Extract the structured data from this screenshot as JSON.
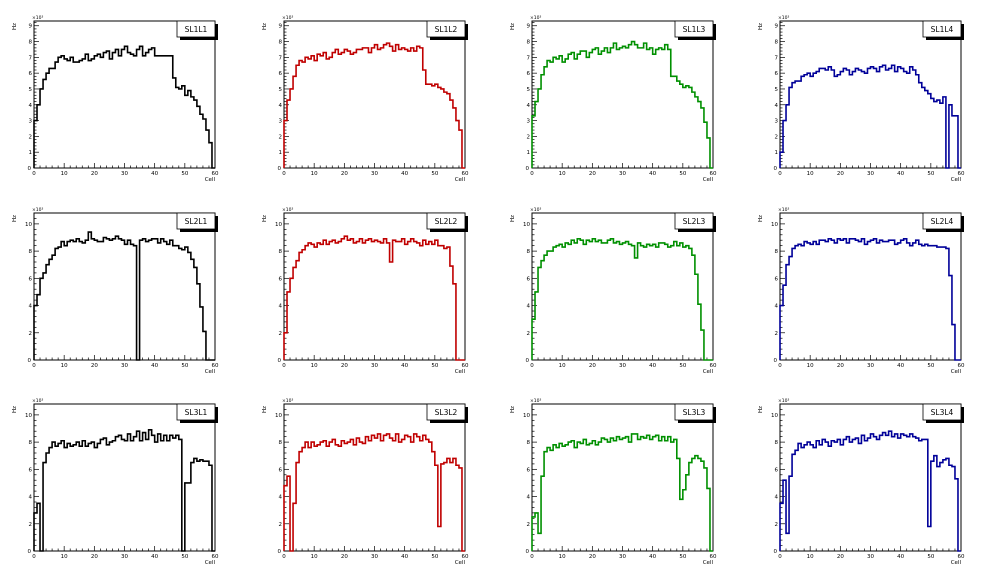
{
  "chart_data": [
    {
      "type": "histogram",
      "title": "SL1L1",
      "xlabel": "Cell",
      "ylabel": "Hz",
      "exponent": "×10³",
      "xlim": [
        0,
        60
      ],
      "ylim": [
        0,
        9.3
      ],
      "yticks": [
        1,
        2,
        3,
        4,
        5,
        6,
        7,
        8,
        9
      ],
      "color": "#000000",
      "values": [
        3,
        4,
        5,
        5.6,
        6,
        6.3,
        6.3,
        6.7,
        7,
        7.1,
        6.9,
        6.8,
        7,
        6.7,
        6.7,
        6.8,
        6.9,
        7.2,
        6.8,
        6.9,
        7.1,
        7.2,
        7.0,
        7.3,
        7.4,
        6.9,
        7.3,
        7.5,
        7.1,
        7.5,
        7.7,
        7.3,
        7.2,
        7.1,
        7.5,
        7.7,
        7.1,
        7.3,
        7.5,
        7.6,
        7.1,
        7.1,
        7.1,
        7.1,
        7.1,
        7.1,
        5.7,
        5.1,
        5.0,
        5.2,
        4.6,
        4.9,
        4.5,
        4.3,
        3.9,
        3.4,
        3.1,
        2.4,
        1.6,
        0
      ]
    },
    {
      "type": "histogram",
      "title": "SL1L2",
      "xlabel": "Cell",
      "ylabel": "Hz",
      "exponent": "×10³",
      "xlim": [
        0,
        60
      ],
      "ylim": [
        0,
        9.3
      ],
      "yticks": [
        1,
        2,
        3,
        4,
        5,
        6,
        7,
        8,
        9
      ],
      "color": "#c00000",
      "values": [
        3,
        4.3,
        5,
        5.8,
        6.5,
        6.8,
        6.7,
        7,
        6.9,
        7.1,
        6.8,
        7.2,
        7.1,
        7.3,
        6.9,
        7.0,
        7.3,
        7.5,
        7.2,
        7.3,
        7.5,
        7.4,
        7.2,
        7.3,
        7.5,
        7.5,
        7.6,
        7.6,
        7.3,
        7.6,
        7.8,
        7.5,
        7.6,
        7.8,
        7.9,
        7.7,
        7.4,
        7.8,
        7.5,
        7.6,
        7.5,
        7.4,
        7.6,
        7.4,
        7.7,
        7.6,
        6.2,
        5.3,
        5.3,
        5.2,
        5.3,
        5.1,
        5.0,
        4.8,
        4.7,
        4.3,
        3.8,
        3.0,
        2.4,
        0
      ]
    },
    {
      "type": "histogram",
      "title": "SL1L3",
      "xlabel": "Cell",
      "ylabel": "Hz",
      "exponent": "×10³",
      "xlim": [
        0,
        60
      ],
      "ylim": [
        0,
        9.3
      ],
      "yticks": [
        1,
        2,
        3,
        4,
        5,
        6,
        7,
        8,
        9
      ],
      "color": "#009000",
      "values": [
        3.3,
        4.2,
        5,
        5.9,
        6.4,
        6.8,
        6.7,
        7,
        6.9,
        7.1,
        6.7,
        6.9,
        7.2,
        7.3,
        6.9,
        7.2,
        7.4,
        7.4,
        7.0,
        7.3,
        7.5,
        7.6,
        7.2,
        7.4,
        7.6,
        7.3,
        7.6,
        7.9,
        7.5,
        7.6,
        7.7,
        7.6,
        7.8,
        8.0,
        7.8,
        7.6,
        7.6,
        7.9,
        7.5,
        7.6,
        7.2,
        7.5,
        7.6,
        7.5,
        7.8,
        7.5,
        5.8,
        5.8,
        5.5,
        5.3,
        5.1,
        5.2,
        5.1,
        4.8,
        4.5,
        4.2,
        3.8,
        2.9,
        1.9,
        0
      ]
    },
    {
      "type": "histogram",
      "title": "SL1L4",
      "xlabel": "Cell",
      "ylabel": "Hz",
      "exponent": "×10³",
      "xlim": [
        0,
        60
      ],
      "ylim": [
        0,
        9.3
      ],
      "yticks": [
        1,
        2,
        3,
        4,
        5,
        6,
        7,
        8,
        9
      ],
      "color": "#000099",
      "values": [
        1,
        3,
        4,
        5.1,
        5.4,
        5.5,
        5.5,
        5.8,
        5.9,
        6.0,
        5.8,
        6.0,
        6.1,
        6.3,
        6.3,
        6.2,
        6.4,
        6.2,
        5.8,
        5.9,
        6.1,
        6.3,
        6.2,
        5.9,
        6.1,
        6.3,
        6.2,
        6.1,
        6.0,
        6.3,
        6.4,
        6.3,
        6.1,
        6.4,
        6.5,
        6.2,
        6.3,
        6.5,
        6.1,
        6.4,
        6.3,
        6.1,
        6.0,
        6.4,
        6.2,
        5.9,
        5.4,
        5.1,
        4.9,
        4.7,
        4.4,
        4.2,
        4.3,
        4.1,
        4.5,
        0,
        4.0,
        3.3,
        3.3,
        0
      ]
    },
    {
      "type": "histogram",
      "title": "SL2L1",
      "xlabel": "Cell",
      "ylabel": "Hz",
      "exponent": "×10³",
      "xlim": [
        0,
        60
      ],
      "ylim": [
        0,
        10.8
      ],
      "yticks": [
        2,
        4,
        6,
        8,
        10
      ],
      "color": "#000000",
      "values": [
        4,
        4.8,
        6,
        6.4,
        7,
        7.4,
        7.7,
        8.2,
        8.3,
        8.7,
        8.4,
        8.7,
        8.8,
        8.7,
        8.9,
        8.7,
        8.6,
        8.8,
        9.4,
        8.9,
        8.8,
        8.7,
        8.7,
        9.0,
        8.9,
        8.8,
        8.9,
        9.1,
        8.9,
        8.8,
        8.5,
        8.8,
        8.5,
        8.4,
        0,
        8.8,
        8.9,
        8.7,
        8.8,
        8.9,
        8.9,
        8.6,
        8.9,
        8.7,
        8.5,
        8.8,
        8.4,
        8.4,
        8.2,
        8.1,
        8.3,
        7.9,
        7.4,
        6.8,
        5.6,
        3.9,
        2.1,
        0,
        0,
        0
      ]
    },
    {
      "type": "histogram",
      "title": "SL2L2",
      "xlabel": "Cell",
      "ylabel": "Hz",
      "exponent": "×10³",
      "xlim": [
        0,
        60
      ],
      "ylim": [
        0,
        10.8
      ],
      "yticks": [
        2,
        4,
        6,
        8,
        10
      ],
      "color": "#c00000",
      "values": [
        2,
        5,
        6,
        6.8,
        7.3,
        7.9,
        8.1,
        8.4,
        8.6,
        8.5,
        8.3,
        8.6,
        8.5,
        8.8,
        8.5,
        8.7,
        8.8,
        8.6,
        8.7,
        8.9,
        9.1,
        8.8,
        8.9,
        8.6,
        8.7,
        8.9,
        8.6,
        8.8,
        8.9,
        8.7,
        8.8,
        8.7,
        8.6,
        8.9,
        8.6,
        7.2,
        8.8,
        8.7,
        8.7,
        8.9,
        8.5,
        8.7,
        8.9,
        8.7,
        8.6,
        8.4,
        8.8,
        8.5,
        8.7,
        8.5,
        8.8,
        8.4,
        8.4,
        8.2,
        8.3,
        6.9,
        5.6,
        0,
        0,
        0
      ]
    },
    {
      "type": "histogram",
      "title": "SL2L3",
      "xlabel": "Cell",
      "ylabel": "Hz",
      "exponent": "×10³",
      "xlim": [
        0,
        60
      ],
      "ylim": [
        0,
        10.8
      ],
      "yticks": [
        2,
        4,
        6,
        8,
        10
      ],
      "color": "#009000",
      "values": [
        3,
        5,
        6.8,
        7.3,
        7.7,
        8.0,
        8.0,
        8.3,
        8.4,
        8.5,
        8.3,
        8.6,
        8.5,
        8.8,
        8.6,
        8.9,
        8.8,
        8.5,
        8.8,
        8.7,
        8.9,
        8.7,
        8.8,
        8.6,
        8.6,
        8.8,
        8.9,
        8.6,
        8.7,
        8.5,
        8.6,
        8.7,
        8.5,
        8.4,
        7.5,
        8.6,
        8.4,
        8.3,
        8.5,
        8.4,
        8.5,
        8.3,
        8.6,
        8.6,
        8.5,
        8.3,
        8.4,
        8.7,
        8.4,
        8.6,
        8.3,
        8.4,
        8.2,
        7.7,
        6.3,
        4.1,
        2.2,
        0,
        0,
        0
      ]
    },
    {
      "type": "histogram",
      "title": "SL2L4",
      "xlabel": "Cell",
      "ylabel": "Hz",
      "exponent": "×10³",
      "xlim": [
        0,
        60
      ],
      "ylim": [
        0,
        10.8
      ],
      "yticks": [
        2,
        4,
        6,
        8,
        10
      ],
      "color": "#000099",
      "values": [
        4,
        5.5,
        7,
        7.6,
        8.2,
        8.4,
        8.5,
        8.4,
        8.7,
        8.6,
        8.5,
        8.7,
        8.5,
        8.8,
        8.8,
        8.7,
        8.9,
        8.8,
        8.6,
        8.9,
        8.8,
        8.9,
        8.6,
        8.9,
        8.9,
        8.8,
        8.7,
        8.9,
        8.5,
        8.7,
        8.8,
        8.9,
        8.6,
        8.8,
        8.7,
        8.7,
        8.8,
        8.8,
        8.5,
        8.6,
        8.8,
        8.9,
        8.6,
        8.4,
        8.6,
        8.8,
        8.5,
        8.4,
        8.5,
        8.4,
        8.4,
        8.4,
        8.3,
        8.3,
        8.3,
        8.2,
        6.2,
        2.6,
        0,
        0
      ]
    },
    {
      "type": "histogram",
      "title": "SL3L1",
      "xlabel": "Cell",
      "ylabel": "Hz",
      "exponent": "×10³",
      "xlim": [
        0,
        60
      ],
      "ylim": [
        0,
        10.8
      ],
      "yticks": [
        2,
        4,
        6,
        8,
        10
      ],
      "color": "#000000",
      "values": [
        2.8,
        3.5,
        0,
        6.5,
        7.2,
        7.6,
        8.0,
        7.7,
        7.9,
        8.1,
        7.6,
        7.9,
        7.7,
        7.8,
        8.0,
        7.7,
        8.1,
        7.7,
        7.9,
        8.0,
        7.6,
        7.9,
        8.2,
        8.3,
        7.8,
        8.0,
        8.1,
        8.4,
        8.5,
        8.2,
        8.1,
        8.6,
        8.1,
        8.4,
        8.8,
        8.1,
        8.7,
        8.2,
        8.9,
        8.5,
        8.0,
        8.6,
        8.1,
        8.5,
        8.1,
        8.5,
        8.3,
        8.5,
        8.2,
        0,
        5.0,
        5.0,
        6.5,
        6.8,
        6.6,
        6.7,
        6.6,
        6.6,
        6.3,
        0
      ]
    },
    {
      "type": "histogram",
      "title": "SL3L2",
      "xlabel": "Cell",
      "ylabel": "Hz",
      "exponent": "×10³",
      "xlim": [
        0,
        60
      ],
      "ylim": [
        0,
        10.8
      ],
      "yticks": [
        2,
        4,
        6,
        8,
        10
      ],
      "color": "#c00000",
      "values": [
        4.8,
        5.5,
        0,
        3.5,
        6.5,
        7.3,
        7.6,
        8.0,
        7.6,
        8.0,
        7.7,
        7.8,
        8.0,
        8.1,
        7.7,
        8.0,
        8.2,
        7.8,
        7.7,
        8.1,
        7.9,
        8.0,
        8.2,
        7.8,
        8.3,
        8.0,
        7.9,
        8.4,
        8.1,
        8.5,
        8.3,
        8.6,
        8.1,
        8.5,
        8.6,
        8.3,
        8.1,
        8.6,
        8.0,
        8.2,
        8.5,
        8.4,
        8.0,
        8.6,
        8.4,
        8.1,
        8.5,
        8.2,
        8.0,
        7.3,
        6.3,
        1.8,
        6.4,
        6.5,
        6.8,
        6.5,
        6.8,
        6.3,
        6.1,
        0
      ]
    },
    {
      "type": "histogram",
      "title": "SL3L3",
      "xlabel": "Cell",
      "ylabel": "Hz",
      "exponent": "×10³",
      "xlim": [
        0,
        60
      ],
      "ylim": [
        0,
        10.8
      ],
      "yticks": [
        2,
        4,
        6,
        8,
        10
      ],
      "color": "#009000",
      "values": [
        2.5,
        2.8,
        1.3,
        5.5,
        7.3,
        7.6,
        7.4,
        7.8,
        7.6,
        7.9,
        7.7,
        7.8,
        8.0,
        8.1,
        7.6,
        8.0,
        7.9,
        8.2,
        7.8,
        7.9,
        8.1,
        7.8,
        8.0,
        8.3,
        8.2,
        8.0,
        8.3,
        8.1,
        8.4,
        8.2,
        8.3,
        8.4,
        8.0,
        8.6,
        8.6,
        8.2,
        8.4,
        8.3,
        8.5,
        8.2,
        8.4,
        8.5,
        8.1,
        8.4,
        8.1,
        8.4,
        8.0,
        8.2,
        6.8,
        3.8,
        4.5,
        5.6,
        6.5,
        6.8,
        7.0,
        6.8,
        6.6,
        6.1,
        4.6,
        0
      ]
    },
    {
      "type": "histogram",
      "title": "SL3L4",
      "xlabel": "Cell",
      "ylabel": "Hz",
      "exponent": "×10³",
      "xlim": [
        0,
        60
      ],
      "ylim": [
        0,
        10.8
      ],
      "yticks": [
        2,
        4,
        6,
        8,
        10
      ],
      "color": "#000099",
      "values": [
        3.5,
        5.2,
        1.3,
        5.5,
        7.1,
        7.4,
        7.9,
        7.6,
        7.8,
        8.0,
        7.8,
        7.6,
        8.1,
        7.8,
        8.2,
        8.0,
        7.7,
        8.1,
        8.0,
        8.2,
        7.8,
        8.2,
        8.4,
        8.0,
        8.2,
        8.3,
        7.9,
        8.5,
        8.1,
        8.3,
        8.6,
        8.4,
        8.2,
        8.5,
        8.7,
        8.5,
        8.8,
        8.4,
        8.6,
        8.3,
        8.6,
        8.5,
        8.4,
        8.6,
        8.4,
        8.3,
        8.1,
        8.2,
        8.2,
        1.8,
        6.6,
        7.0,
        6.2,
        6.5,
        6.7,
        6.8,
        6.3,
        6.2,
        5.3,
        0
      ]
    }
  ]
}
